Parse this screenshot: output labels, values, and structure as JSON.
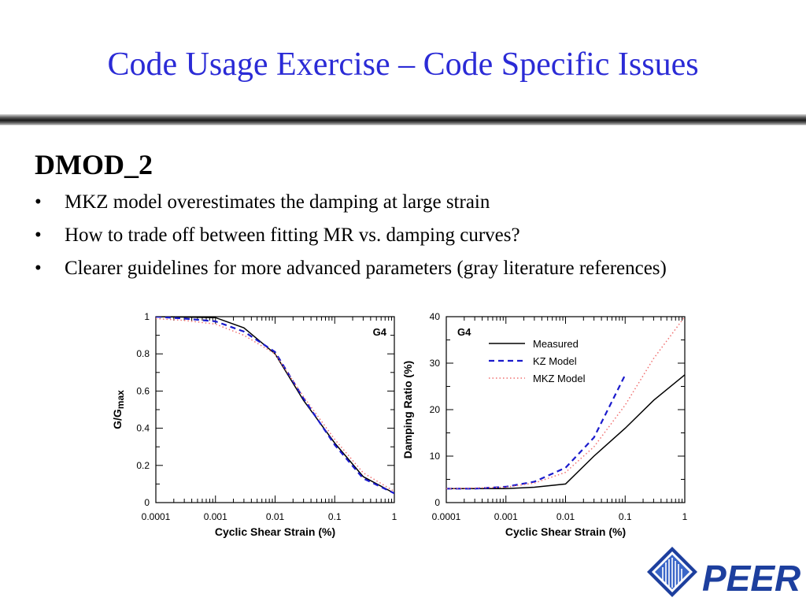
{
  "slide": {
    "title": "Code Usage Exercise – Code Specific Issues",
    "heading": "DMOD_2",
    "bullets": [
      "MKZ model overestimates the damping at large strain",
      "How to trade off between fitting MR vs. damping curves?",
      "Clearer guidelines for more advanced parameters (gray literature references)"
    ],
    "bullet_glyph": "•",
    "logo_text": "PEER"
  },
  "chart_data": [
    {
      "type": "line",
      "xscale": "log",
      "xlim": [
        0.0001,
        1
      ],
      "ylim": [
        0,
        1
      ],
      "xticks": [
        0.0001,
        0.001,
        0.01,
        0.1,
        1
      ],
      "xtick_labels": [
        "0.0001",
        "0.001",
        "0.01",
        "0.1",
        "1"
      ],
      "yticks": [
        0,
        0.2,
        0.4,
        0.6,
        0.8,
        1
      ],
      "ytick_labels": [
        "0",
        "0.2",
        "0.4",
        "0.6",
        "0.8",
        "1"
      ],
      "xlabel": "Cyclic Shear Strain (%)",
      "ylabel_main": "G/G",
      "ylabel_sub": "max",
      "annotation": "G4",
      "series": [
        {
          "style": "solid",
          "color": "#000000",
          "x": [
            0.0001,
            0.001,
            0.003,
            0.01,
            0.03,
            0.1,
            0.3,
            1
          ],
          "y": [
            1.0,
            0.995,
            0.94,
            0.8,
            0.55,
            0.32,
            0.14,
            0.05
          ]
        },
        {
          "style": "dashed",
          "color": "#1a1acc",
          "x": [
            0.0001,
            0.0003,
            0.001,
            0.003,
            0.01,
            0.03,
            0.1,
            0.3,
            1
          ],
          "y": [
            1.0,
            0.99,
            0.975,
            0.92,
            0.81,
            0.56,
            0.31,
            0.13,
            0.05
          ]
        },
        {
          "style": "dotted",
          "color": "#f07070",
          "x": [
            0.0001,
            0.0003,
            0.001,
            0.003,
            0.01,
            0.03,
            0.1,
            0.3,
            1
          ],
          "y": [
            0.99,
            0.98,
            0.96,
            0.9,
            0.8,
            0.57,
            0.34,
            0.16,
            0.06
          ]
        }
      ]
    },
    {
      "type": "line",
      "xscale": "log",
      "xlim": [
        0.0001,
        1
      ],
      "ylim": [
        0,
        40
      ],
      "xticks": [
        0.0001,
        0.001,
        0.01,
        0.1,
        1
      ],
      "xtick_labels": [
        "0.0001",
        "0.001",
        "0.01",
        "0.1",
        "1"
      ],
      "yticks": [
        0,
        10,
        20,
        30,
        40
      ],
      "ytick_labels": [
        "0",
        "10",
        "20",
        "30",
        "40"
      ],
      "xlabel": "Cyclic Shear Strain (%)",
      "ylabel": "Damping Ratio (%)",
      "annotation": "G4",
      "legend_position": "top-left",
      "series": [
        {
          "name": "Measured",
          "style": "solid",
          "color": "#000000",
          "x": [
            0.0001,
            0.001,
            0.003,
            0.01,
            0.03,
            0.1,
            0.3,
            1
          ],
          "y": [
            3.0,
            3.0,
            3.3,
            4.0,
            10.0,
            16.0,
            22.0,
            27.5
          ]
        },
        {
          "name": "KZ Model",
          "style": "dashed",
          "color": "#1a1acc",
          "x": [
            0.0001,
            0.0003,
            0.001,
            0.003,
            0.01,
            0.03,
            0.1
          ],
          "y": [
            3.0,
            3.0,
            3.4,
            4.5,
            7.5,
            14.0,
            27.5
          ]
        },
        {
          "name": "MKZ Model",
          "style": "dotted",
          "color": "#f07070",
          "x": [
            0.0001,
            0.001,
            0.003,
            0.01,
            0.03,
            0.1,
            0.3,
            1
          ],
          "y": [
            3.0,
            3.3,
            4.2,
            6.5,
            12.0,
            21.0,
            31.0,
            40.0
          ]
        }
      ]
    }
  ]
}
